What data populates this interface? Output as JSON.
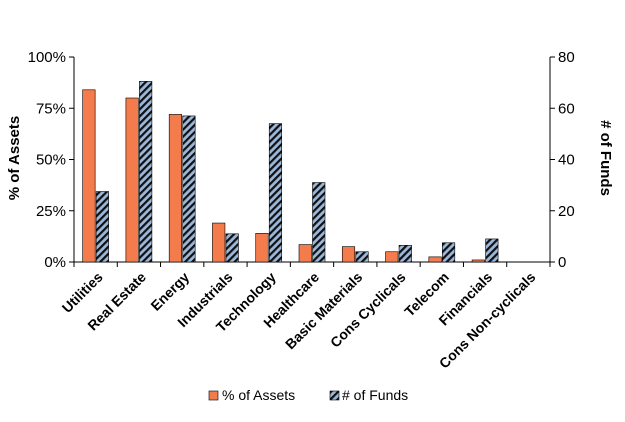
{
  "chart_data": {
    "type": "bar",
    "categories": [
      "Utilities",
      "Real Estate",
      "Energy",
      "Industrials",
      "Technology",
      "Healthcare",
      "Basic Materials",
      "Cons Cyclicals",
      "Telecom",
      "Financials",
      "Cons Non-cyclicals"
    ],
    "series": [
      {
        "name": "% of Assets",
        "axis": "left",
        "color": "#f47c4c",
        "values": [
          84,
          80,
          72,
          19,
          14,
          8.5,
          7.5,
          5,
          2.5,
          1,
          0
        ]
      },
      {
        "name": "# of Funds",
        "axis": "right",
        "color": "#9bb7d9",
        "pattern": "diagonal-hatch",
        "values": [
          27.5,
          70.5,
          57,
          11,
          54,
          31,
          4,
          6.5,
          7.5,
          9,
          0
        ]
      }
    ],
    "ylabel": "% of Assets",
    "ylabel_right": "# of Funds",
    "ylim": [
      0,
      100
    ],
    "ylim_right": [
      0,
      80
    ],
    "yticks": [
      "0%",
      "25%",
      "50%",
      "75%",
      "100%"
    ],
    "yticks_right": [
      "0",
      "20",
      "40",
      "60",
      "80"
    ],
    "yticks_values": [
      0,
      25,
      50,
      75,
      100
    ],
    "yticks_right_values": [
      0,
      20,
      40,
      60,
      80
    ],
    "grid": false,
    "legend": "bottom-center"
  }
}
